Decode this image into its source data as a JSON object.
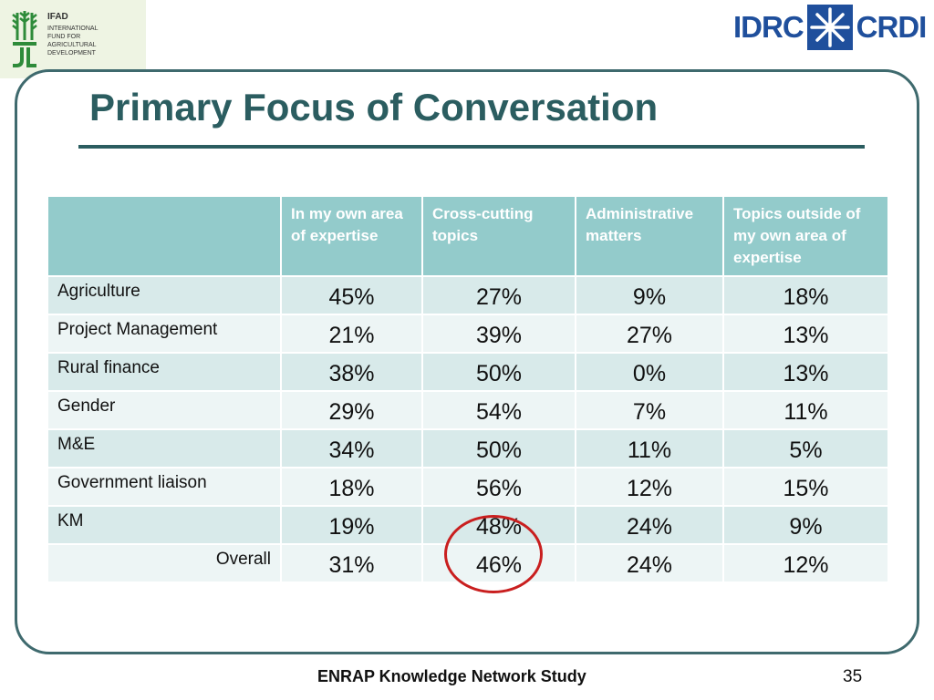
{
  "logos": {
    "ifad": {
      "name": "IFAD",
      "lines": [
        "INTERNATIONAL",
        "FUND FOR",
        "AGRICULTURAL",
        "DEVELOPMENT"
      ],
      "color": "#2e8b3a"
    },
    "idrc": {
      "left": "IDRC",
      "right": "CRDI",
      "color": "#1f4f9c"
    }
  },
  "slide": {
    "title": "Primary Focus of Conversation",
    "footer": "ENRAP Knowledge Network Study",
    "page_number": "35",
    "accent_color": "#2b5d60",
    "highlight_color": "#c91f1f"
  },
  "table": {
    "corner": "",
    "columns": [
      "In my own area of expertise",
      "Cross-cutting topics",
      "Administrative matters",
      "Topics outside of my own area of expertise"
    ],
    "rows": [
      {
        "label": "Agriculture",
        "values": [
          "45%",
          "27%",
          "9%",
          "18%"
        ]
      },
      {
        "label": "Project Management",
        "values": [
          "21%",
          "39%",
          "27%",
          "13%"
        ]
      },
      {
        "label": "Rural finance",
        "values": [
          "38%",
          "50%",
          "0%",
          "13%"
        ]
      },
      {
        "label": "Gender",
        "values": [
          "29%",
          "54%",
          "7%",
          "11%"
        ]
      },
      {
        "label": "M&E",
        "values": [
          "34%",
          "50%",
          "11%",
          "5%"
        ]
      },
      {
        "label": "Government liaison",
        "values": [
          "18%",
          "56%",
          "12%",
          "15%"
        ]
      },
      {
        "label": "KM",
        "values": [
          "19%",
          "48%",
          "24%",
          "9%"
        ]
      },
      {
        "label": "Overall",
        "values": [
          "31%",
          "46%",
          "24%",
          "12%"
        ]
      }
    ]
  }
}
